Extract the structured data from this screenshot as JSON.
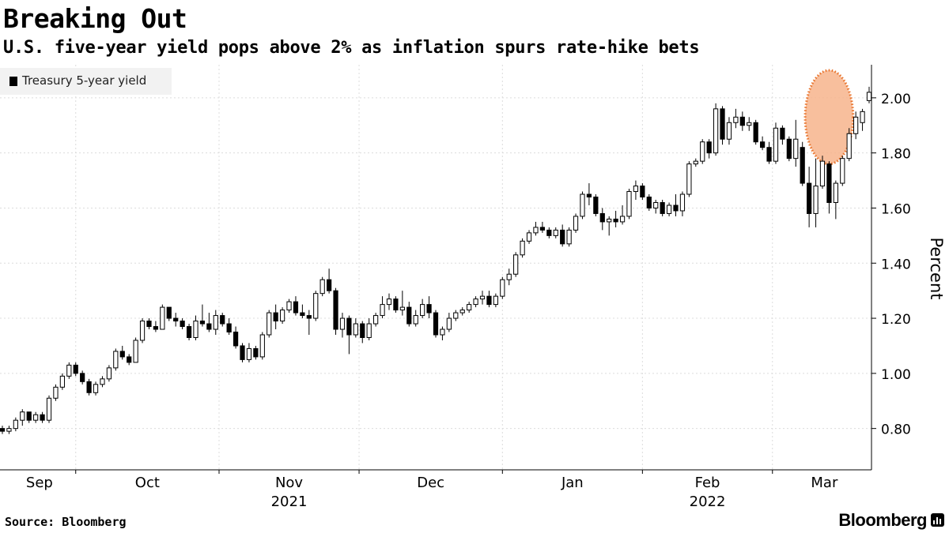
{
  "title": "Breaking Out",
  "subtitle": "U.S. five-year yield pops above 2% as inflation spurs rate-hike bets",
  "source": "Source: Bloomberg",
  "brand": "Bloomberg",
  "brand_icon": "bloomberg-terminal-icon",
  "colors": {
    "candle": "#000000",
    "grid": "#dcdcdc",
    "highlight_fill": "#f7b48c",
    "highlight_stroke": "#e8722a",
    "legend_bg": "#f2f2f2"
  },
  "chart_data": {
    "type": "candlestick",
    "title": "Breaking Out",
    "subtitle": "U.S. five-year yield pops above 2% as inflation spurs rate-hike bets",
    "ylabel": "Percent",
    "ylim": [
      0.65,
      2.12
    ],
    "yticks": [
      0.8,
      1.0,
      1.2,
      1.4,
      1.6,
      1.8,
      2.0
    ],
    "ytick_labels": [
      "0.80",
      "1.00",
      "1.20",
      "1.40",
      "1.60",
      "1.80",
      "2.00"
    ],
    "y_axis_side": "right",
    "grid": "dotted",
    "legend": {
      "position": "top-left",
      "entries": [
        "Treasury 5-year yield"
      ]
    },
    "series": [
      {
        "name": "Treasury 5-year yield"
      }
    ],
    "x_month_labels": [
      {
        "label": "Sep",
        "index": 0
      },
      {
        "label": "Oct",
        "index": 22
      },
      {
        "label": "Nov",
        "index": 43
      },
      {
        "label": "Dec",
        "index": 64
      },
      {
        "label": "Jan",
        "index": 86
      },
      {
        "label": "Feb",
        "index": 106
      },
      {
        "label": "Mar",
        "index": 125
      }
    ],
    "x_year_labels": [
      {
        "label": "2021",
        "month_index": 2
      },
      {
        "label": "2022",
        "month_index": 5
      }
    ],
    "highlight": {
      "description": "circle around late-Feb breakout",
      "from_index": 121,
      "to_index": 127,
      "center_y": 1.93,
      "radius_y": 0.17
    },
    "candles": [
      [
        0.8,
        0.81,
        0.78,
        0.79
      ],
      [
        0.79,
        0.81,
        0.78,
        0.8
      ],
      [
        0.8,
        0.84,
        0.79,
        0.83
      ],
      [
        0.83,
        0.87,
        0.81,
        0.86
      ],
      [
        0.86,
        0.86,
        0.82,
        0.83
      ],
      [
        0.83,
        0.86,
        0.82,
        0.85
      ],
      [
        0.85,
        0.86,
        0.82,
        0.83
      ],
      [
        0.83,
        0.92,
        0.82,
        0.91
      ],
      [
        0.91,
        0.96,
        0.9,
        0.95
      ],
      [
        0.95,
        1.0,
        0.94,
        0.99
      ],
      [
        0.99,
        1.04,
        0.98,
        1.03
      ],
      [
        1.03,
        1.04,
        0.99,
        1.0
      ],
      [
        1.0,
        1.01,
        0.96,
        0.97
      ],
      [
        0.97,
        0.98,
        0.92,
        0.93
      ],
      [
        0.93,
        0.97,
        0.92,
        0.96
      ],
      [
        0.96,
        0.99,
        0.95,
        0.98
      ],
      [
        0.98,
        1.03,
        0.97,
        1.02
      ],
      [
        1.02,
        1.09,
        1.01,
        1.08
      ],
      [
        1.08,
        1.1,
        1.05,
        1.06
      ],
      [
        1.06,
        1.07,
        1.03,
        1.04
      ],
      [
        1.04,
        1.13,
        1.04,
        1.12
      ],
      [
        1.12,
        1.2,
        1.11,
        1.19
      ],
      [
        1.19,
        1.2,
        1.16,
        1.17
      ],
      [
        1.17,
        1.19,
        1.15,
        1.16
      ],
      [
        1.16,
        1.25,
        1.16,
        1.24
      ],
      [
        1.24,
        1.24,
        1.19,
        1.2
      ],
      [
        1.2,
        1.22,
        1.17,
        1.19
      ],
      [
        1.19,
        1.2,
        1.16,
        1.17
      ],
      [
        1.17,
        1.18,
        1.12,
        1.13
      ],
      [
        1.13,
        1.21,
        1.12,
        1.19
      ],
      [
        1.19,
        1.25,
        1.17,
        1.18
      ],
      [
        1.18,
        1.22,
        1.15,
        1.16
      ],
      [
        1.16,
        1.23,
        1.14,
        1.21
      ],
      [
        1.21,
        1.22,
        1.17,
        1.18
      ],
      [
        1.18,
        1.2,
        1.14,
        1.15
      ],
      [
        1.15,
        1.17,
        1.09,
        1.1
      ],
      [
        1.1,
        1.11,
        1.04,
        1.05
      ],
      [
        1.05,
        1.11,
        1.04,
        1.09
      ],
      [
        1.09,
        1.1,
        1.05,
        1.06
      ],
      [
        1.06,
        1.15,
        1.05,
        1.14
      ],
      [
        1.14,
        1.23,
        1.13,
        1.22
      ],
      [
        1.22,
        1.25,
        1.16,
        1.19
      ],
      [
        1.19,
        1.24,
        1.18,
        1.23
      ],
      [
        1.23,
        1.27,
        1.22,
        1.26
      ],
      [
        1.26,
        1.28,
        1.21,
        1.22
      ],
      [
        1.22,
        1.25,
        1.2,
        1.21
      ],
      [
        1.21,
        1.23,
        1.14,
        1.2
      ],
      [
        1.2,
        1.3,
        1.19,
        1.29
      ],
      [
        1.29,
        1.35,
        1.28,
        1.34
      ],
      [
        1.34,
        1.38,
        1.29,
        1.3
      ],
      [
        1.3,
        1.31,
        1.14,
        1.16
      ],
      [
        1.16,
        1.22,
        1.13,
        1.2
      ],
      [
        1.2,
        1.21,
        1.07,
        1.14
      ],
      [
        1.14,
        1.2,
        1.13,
        1.18
      ],
      [
        1.18,
        1.19,
        1.11,
        1.13
      ],
      [
        1.13,
        1.2,
        1.12,
        1.18
      ],
      [
        1.18,
        1.22,
        1.17,
        1.21
      ],
      [
        1.21,
        1.28,
        1.2,
        1.25
      ],
      [
        1.25,
        1.29,
        1.23,
        1.27
      ],
      [
        1.27,
        1.28,
        1.22,
        1.23
      ],
      [
        1.23,
        1.3,
        1.21,
        1.24
      ],
      [
        1.24,
        1.26,
        1.17,
        1.18
      ],
      [
        1.18,
        1.23,
        1.17,
        1.21
      ],
      [
        1.21,
        1.27,
        1.2,
        1.25
      ],
      [
        1.25,
        1.28,
        1.2,
        1.22
      ],
      [
        1.22,
        1.23,
        1.13,
        1.14
      ],
      [
        1.14,
        1.17,
        1.12,
        1.16
      ],
      [
        1.16,
        1.22,
        1.15,
        1.2
      ],
      [
        1.2,
        1.23,
        1.19,
        1.22
      ],
      [
        1.22,
        1.24,
        1.21,
        1.23
      ],
      [
        1.23,
        1.26,
        1.22,
        1.25
      ],
      [
        1.25,
        1.28,
        1.24,
        1.27
      ],
      [
        1.27,
        1.3,
        1.25,
        1.28
      ],
      [
        1.28,
        1.3,
        1.24,
        1.25
      ],
      [
        1.25,
        1.29,
        1.24,
        1.28
      ],
      [
        1.28,
        1.35,
        1.27,
        1.34
      ],
      [
        1.34,
        1.38,
        1.32,
        1.36
      ],
      [
        1.36,
        1.44,
        1.35,
        1.43
      ],
      [
        1.43,
        1.49,
        1.42,
        1.48
      ],
      [
        1.48,
        1.52,
        1.47,
        1.51
      ],
      [
        1.51,
        1.55,
        1.5,
        1.53
      ],
      [
        1.53,
        1.55,
        1.51,
        1.52
      ],
      [
        1.52,
        1.53,
        1.49,
        1.5
      ],
      [
        1.5,
        1.53,
        1.49,
        1.52
      ],
      [
        1.52,
        1.54,
        1.46,
        1.47
      ],
      [
        1.47,
        1.53,
        1.46,
        1.52
      ],
      [
        1.52,
        1.58,
        1.51,
        1.57
      ],
      [
        1.57,
        1.66,
        1.56,
        1.65
      ],
      [
        1.65,
        1.69,
        1.61,
        1.64
      ],
      [
        1.64,
        1.65,
        1.57,
        1.58
      ],
      [
        1.58,
        1.6,
        1.52,
        1.55
      ],
      [
        1.55,
        1.57,
        1.5,
        1.56
      ],
      [
        1.56,
        1.59,
        1.53,
        1.55
      ],
      [
        1.55,
        1.61,
        1.54,
        1.57
      ],
      [
        1.57,
        1.67,
        1.56,
        1.66
      ],
      [
        1.66,
        1.7,
        1.63,
        1.68
      ],
      [
        1.68,
        1.69,
        1.63,
        1.64
      ],
      [
        1.64,
        1.65,
        1.59,
        1.6
      ],
      [
        1.6,
        1.63,
        1.58,
        1.62
      ],
      [
        1.62,
        1.63,
        1.57,
        1.58
      ],
      [
        1.58,
        1.62,
        1.57,
        1.61
      ],
      [
        1.61,
        1.65,
        1.57,
        1.59
      ],
      [
        1.59,
        1.66,
        1.57,
        1.65
      ],
      [
        1.65,
        1.77,
        1.64,
        1.76
      ],
      [
        1.76,
        1.78,
        1.75,
        1.77
      ],
      [
        1.77,
        1.85,
        1.76,
        1.84
      ],
      [
        1.84,
        1.85,
        1.78,
        1.8
      ],
      [
        1.8,
        1.98,
        1.79,
        1.96
      ],
      [
        1.96,
        1.97,
        1.83,
        1.85
      ],
      [
        1.85,
        1.93,
        1.83,
        1.91
      ],
      [
        1.91,
        1.96,
        1.89,
        1.93
      ],
      [
        1.93,
        1.95,
        1.88,
        1.9
      ],
      [
        1.9,
        1.93,
        1.88,
        1.91
      ],
      [
        1.91,
        1.92,
        1.83,
        1.84
      ],
      [
        1.84,
        1.86,
        1.81,
        1.82
      ],
      [
        1.82,
        1.84,
        1.76,
        1.77
      ],
      [
        1.77,
        1.91,
        1.76,
        1.89
      ],
      [
        1.89,
        1.9,
        1.83,
        1.85
      ],
      [
        1.85,
        1.86,
        1.77,
        1.78
      ],
      [
        1.78,
        1.92,
        1.75,
        1.85
      ],
      [
        1.82,
        1.84,
        1.68,
        1.69
      ],
      [
        1.69,
        1.75,
        1.53,
        1.58
      ],
      [
        1.58,
        1.78,
        1.53,
        1.68
      ],
      [
        1.68,
        1.79,
        1.67,
        1.77
      ],
      [
        1.76,
        1.77,
        1.58,
        1.62
      ],
      [
        1.62,
        1.7,
        1.56,
        1.69
      ],
      [
        1.69,
        1.79,
        1.68,
        1.78
      ],
      [
        1.78,
        1.89,
        1.77,
        1.87
      ],
      [
        1.87,
        1.95,
        1.85,
        1.93
      ],
      [
        1.91,
        1.96,
        1.88,
        1.95
      ],
      [
        1.99,
        2.04,
        1.98,
        2.02
      ]
    ]
  }
}
